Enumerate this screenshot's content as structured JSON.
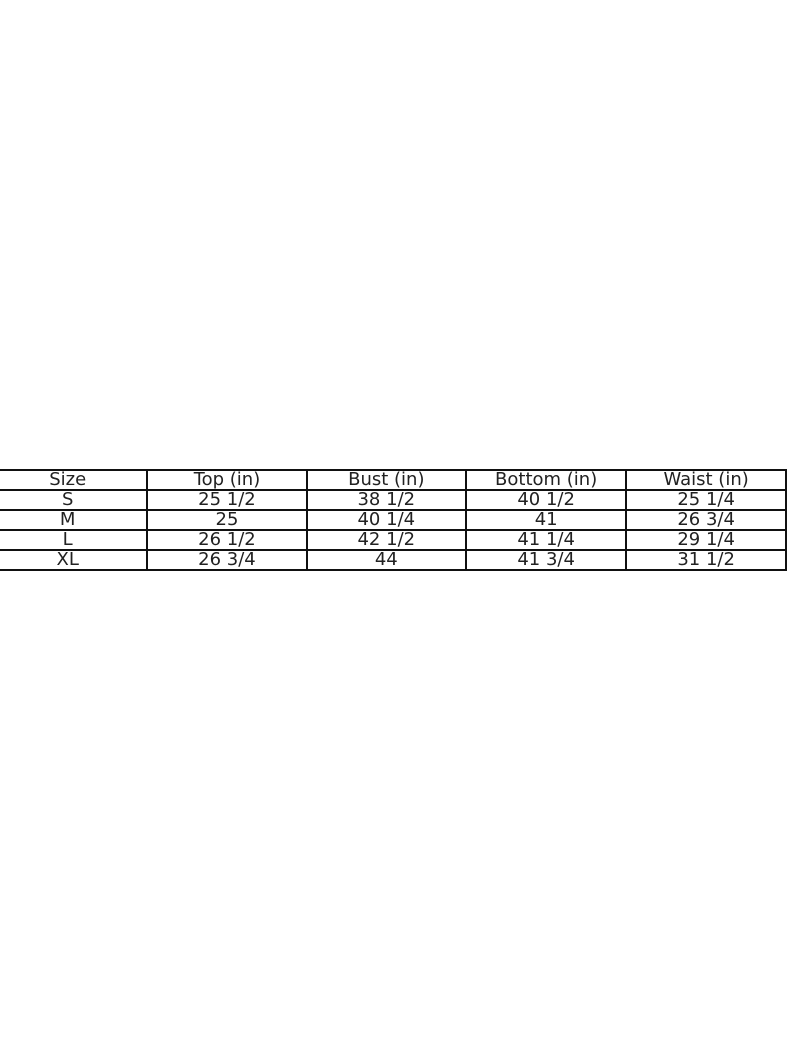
{
  "size_chart": {
    "headers": [
      "Size",
      "Top (in)",
      "Bust (in)",
      "Bottom (in)",
      "Waist (in)"
    ],
    "rows": [
      [
        "S",
        "25 1/2",
        "38 1/2",
        "40 1/2",
        "25 1/4"
      ],
      [
        "M",
        "25",
        "40 1/4",
        "41",
        "26 3/4"
      ],
      [
        "L",
        "26 1/2",
        "42 1/2",
        "41 1/4",
        "29 1/4"
      ],
      [
        "XL",
        "26 3/4",
        "44",
        "41 3/4",
        "31 1/2"
      ]
    ]
  }
}
